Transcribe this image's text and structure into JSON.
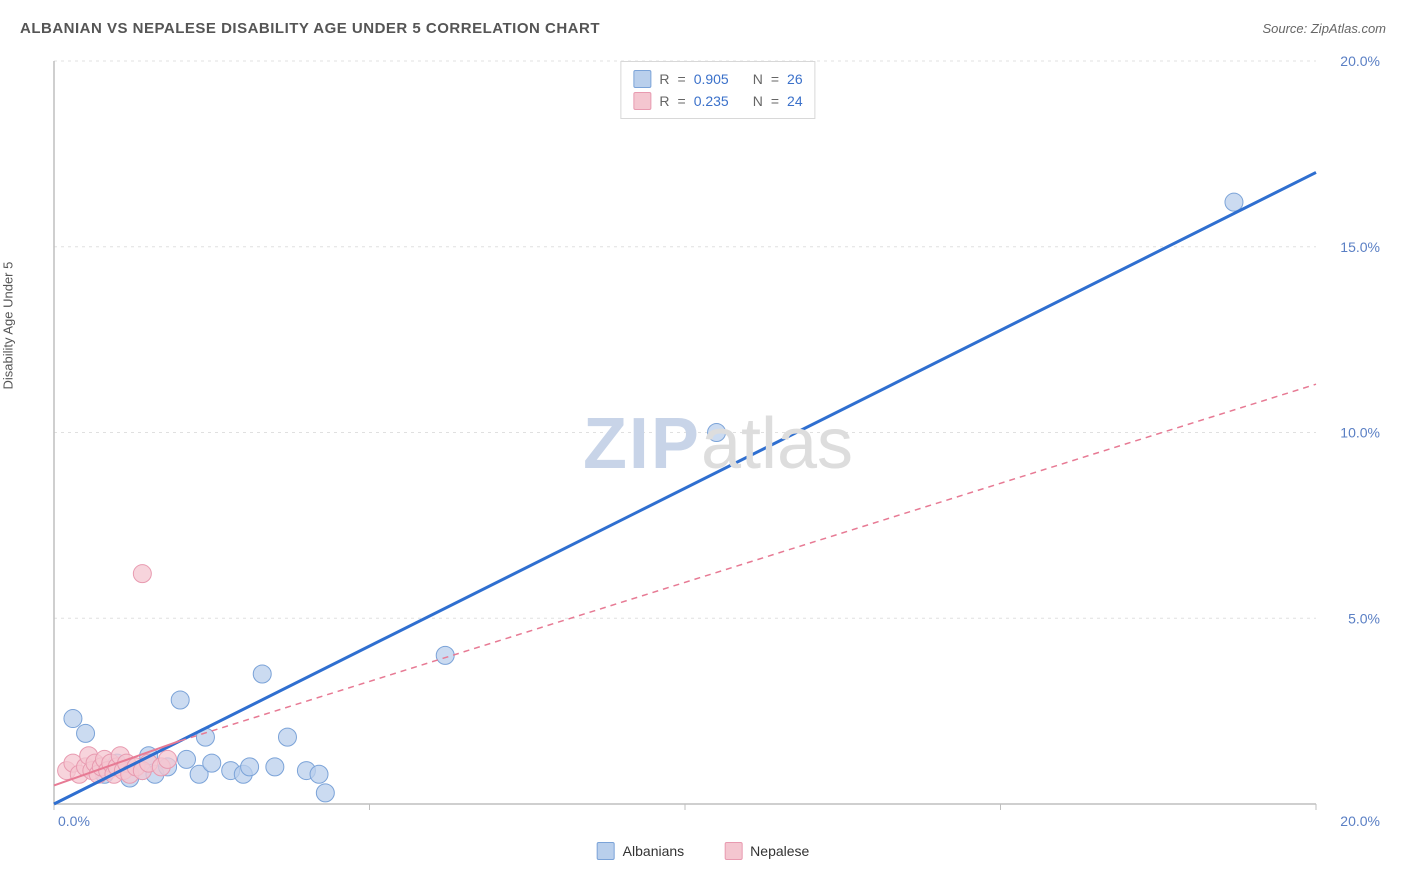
{
  "title": "ALBANIAN VS NEPALESE DISABILITY AGE UNDER 5 CORRELATION CHART",
  "source": "Source: ZipAtlas.com",
  "ylabel": "Disability Age Under 5",
  "watermark": {
    "zip": "ZIP",
    "atlas": "atlas"
  },
  "chart": {
    "type": "scatter",
    "xlim": [
      0,
      20
    ],
    "ylim": [
      0,
      20
    ],
    "x_ticks": [
      0,
      5,
      10,
      15,
      20
    ],
    "y_ticks": [
      0,
      5,
      10,
      15,
      20
    ],
    "x_tick_labels": [
      "0.0%",
      "",
      "",
      "",
      "20.0%"
    ],
    "y_tick_labels": [
      "",
      "5.0%",
      "10.0%",
      "15.0%",
      "20.0%"
    ],
    "origin_label": "0.0%",
    "grid_color": "#e0e0e0",
    "axis_color": "#bfbfbf",
    "tick_label_color": "#5a7fc4",
    "tick_label_fontsize": 14,
    "background_color": "#ffffff"
  },
  "series": [
    {
      "name": "Albanians",
      "marker_fill": "#b9cfec",
      "marker_stroke": "#7ba3d8",
      "marker_radius": 9,
      "line_color": "#2f6fd0",
      "line_width": 3,
      "line_dash": "none",
      "line_start": [
        0,
        0
      ],
      "line_end": [
        20,
        17.0
      ],
      "r_value": "0.905",
      "n_value": "26",
      "points": [
        [
          0.3,
          2.3
        ],
        [
          0.5,
          1.9
        ],
        [
          0.8,
          0.8
        ],
        [
          1.0,
          1.1
        ],
        [
          1.2,
          0.7
        ],
        [
          1.4,
          0.9
        ],
        [
          1.5,
          1.3
        ],
        [
          1.6,
          0.8
        ],
        [
          1.8,
          1.0
        ],
        [
          2.0,
          2.8
        ],
        [
          2.1,
          1.2
        ],
        [
          2.3,
          0.8
        ],
        [
          2.4,
          1.8
        ],
        [
          2.5,
          1.1
        ],
        [
          2.8,
          0.9
        ],
        [
          3.0,
          0.8
        ],
        [
          3.1,
          1.0
        ],
        [
          3.3,
          3.5
        ],
        [
          3.5,
          1.0
        ],
        [
          3.7,
          1.8
        ],
        [
          4.0,
          0.9
        ],
        [
          4.2,
          0.8
        ],
        [
          4.3,
          0.3
        ],
        [
          6.2,
          4.0
        ],
        [
          10.5,
          10.0
        ],
        [
          18.7,
          16.2
        ]
      ]
    },
    {
      "name": "Nepalese",
      "marker_fill": "#f4c6d0",
      "marker_stroke": "#e89ab0",
      "marker_radius": 9,
      "line_color": "#e77a94",
      "line_width": 1.5,
      "line_dash": "6,5",
      "line_start": [
        0,
        0.5
      ],
      "line_end": [
        20,
        11.3
      ],
      "solid_segment_end": [
        2.0,
        1.7
      ],
      "r_value": "0.235",
      "n_value": "24",
      "points": [
        [
          0.2,
          0.9
        ],
        [
          0.3,
          1.1
        ],
        [
          0.4,
          0.8
        ],
        [
          0.5,
          1.0
        ],
        [
          0.55,
          1.3
        ],
        [
          0.6,
          0.9
        ],
        [
          0.65,
          1.1
        ],
        [
          0.7,
          0.8
        ],
        [
          0.75,
          1.0
        ],
        [
          0.8,
          1.2
        ],
        [
          0.85,
          0.9
        ],
        [
          0.9,
          1.1
        ],
        [
          0.95,
          0.8
        ],
        [
          1.0,
          1.0
        ],
        [
          1.05,
          1.3
        ],
        [
          1.1,
          0.9
        ],
        [
          1.15,
          1.1
        ],
        [
          1.2,
          0.8
        ],
        [
          1.3,
          1.0
        ],
        [
          1.4,
          0.9
        ],
        [
          1.5,
          1.1
        ],
        [
          1.7,
          1.0
        ],
        [
          1.8,
          1.2
        ],
        [
          1.4,
          6.2
        ]
      ]
    }
  ],
  "legend_top": {
    "r_label": "R",
    "n_label": "N",
    "eq": "="
  },
  "legend_bottom": {
    "items": [
      "Albanians",
      "Nepalese"
    ]
  }
}
